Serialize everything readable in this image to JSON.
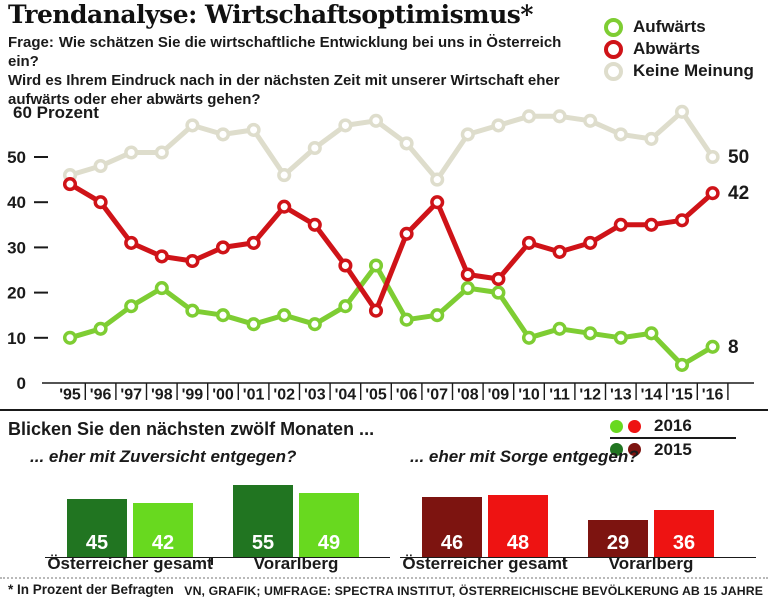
{
  "header": {
    "title": "Trendanalyse: Wirtschaftsoptimismus*",
    "question_label": "Frage:",
    "question_lines": [
      "Wie schätzen Sie die wirtschaftliche Entwicklung bei uns in Österreich ein?",
      "Wird es Ihrem Eindruck nach in der nächsten Zeit mit unserer Wirtschaft eher",
      "aufwärts oder eher abwärts gehen?"
    ]
  },
  "legend": {
    "items": [
      {
        "label": "Aufwärts",
        "color": "#7ecd33"
      },
      {
        "label": "Abwärts",
        "color": "#cf1318"
      },
      {
        "label": "Keine Meinung",
        "color": "#deddcc"
      }
    ]
  },
  "chart_data": [
    {
      "id": "trend-lines",
      "type": "line",
      "title": "Trendanalyse: Wirtschaftsoptimismus",
      "y_axis_top_label": "60 Prozent",
      "y_ticks": [
        0,
        10,
        20,
        30,
        40,
        50
      ],
      "ylim": [
        0,
        63
      ],
      "grid": false,
      "legend_position": "top-right",
      "x": [
        "'95",
        "'96",
        "'97",
        "'98",
        "'99",
        "'00",
        "'01",
        "'02",
        "'03",
        "'04",
        "'05",
        "'06",
        "'07",
        "'08",
        "'09",
        "'10",
        "'11",
        "'12",
        "'13",
        "'14",
        "'15",
        "'16"
      ],
      "series": [
        {
          "name": "Aufwärts",
          "color": "#7ecd33",
          "end_label": "8",
          "values": [
            10,
            12,
            17,
            21,
            16,
            15,
            13,
            15,
            13,
            17,
            26,
            14,
            15,
            21,
            20,
            10,
            12,
            11,
            10,
            11,
            4,
            8
          ]
        },
        {
          "name": "Abwärts",
          "color": "#cf1318",
          "end_label": "42",
          "values": [
            44,
            40,
            31,
            28,
            27,
            30,
            31,
            39,
            35,
            26,
            16,
            33,
            40,
            24,
            23,
            31,
            29,
            31,
            35,
            35,
            36,
            42
          ]
        },
        {
          "name": "Keine Meinung",
          "color": "#deddcc",
          "end_label": "50",
          "values": [
            46,
            48,
            51,
            51,
            57,
            55,
            56,
            46,
            52,
            57,
            58,
            53,
            45,
            55,
            57,
            59,
            59,
            58,
            55,
            54,
            60,
            50
          ]
        }
      ]
    },
    {
      "id": "zuversicht-bars",
      "type": "bar",
      "question": "... eher mit Zuversicht entgegen?",
      "categories": [
        "Österreicher gesamt",
        "Vorarlberg"
      ],
      "series": [
        {
          "name": "2015",
          "color": "#217521",
          "values": [
            45,
            55
          ]
        },
        {
          "name": "2016",
          "color": "#68d91f",
          "values": [
            42,
            49
          ]
        }
      ]
    },
    {
      "id": "sorge-bars",
      "type": "bar",
      "question": "... eher mit Sorge entgegen?",
      "categories": [
        "Österreicher gesamt",
        "Vorarlberg"
      ],
      "series": [
        {
          "name": "2015",
          "color": "#7d1410",
          "values": [
            46,
            29
          ]
        },
        {
          "name": "2016",
          "color": "#ee1312",
          "values": [
            48,
            36
          ]
        }
      ]
    }
  ],
  "bottom": {
    "heading": "Blicken Sie den nächsten zwölf Monaten ...",
    "legend": {
      "rows": [
        {
          "label": "2016",
          "dot_colors": [
            "#68d91f",
            "#ee1312"
          ]
        },
        {
          "label": "2015",
          "dot_colors": [
            "#217521",
            "#7d1410"
          ]
        }
      ]
    },
    "footnote": "* In Prozent der Befragten",
    "source": "VN, GRAFIK; UMFRAGE: SPECTRA INSTITUT, ÖSTERREICHISCHE BEVÖLKERUNG AB 15 JAHRE"
  }
}
